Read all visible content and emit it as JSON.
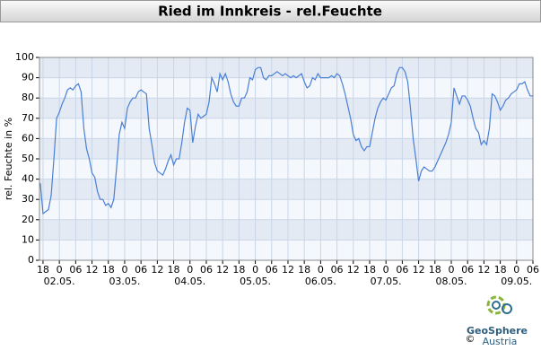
{
  "chart_data": {
    "type": "line",
    "title": "Ried im Innkreis - rel.Feuchte",
    "y_label": "rel. Feuchte in %",
    "credit": {
      "copyright": "©",
      "name": "GeoSphere",
      "country": "Austria"
    },
    "series": [
      {
        "color": "#4a7fd6",
        "x": [
          -1,
          0,
          1,
          2,
          3,
          4,
          5,
          6,
          7,
          8,
          9,
          10,
          11,
          12,
          13,
          14,
          15,
          16,
          17,
          18,
          19,
          20,
          21,
          22,
          23,
          24,
          25,
          26,
          27,
          28,
          29,
          30,
          31,
          32,
          33,
          34,
          35,
          36,
          37,
          38,
          39,
          40,
          41,
          42,
          43,
          44,
          45,
          46,
          47,
          48,
          49,
          50,
          51,
          52,
          53,
          54,
          55,
          56,
          57,
          58,
          59,
          60,
          61,
          62,
          63,
          64,
          65,
          66,
          67,
          68,
          69,
          70,
          71,
          72,
          73,
          74,
          75,
          76,
          77,
          78,
          79,
          80,
          81,
          82,
          83,
          84,
          85,
          86,
          87,
          88,
          89,
          90,
          91,
          92,
          93,
          94,
          95,
          96,
          97,
          98,
          99,
          100,
          101,
          102,
          103,
          104,
          105,
          106,
          107,
          108,
          109,
          110,
          111,
          112,
          113,
          114,
          115,
          116,
          117,
          118,
          119,
          120,
          121,
          122,
          123,
          124,
          125,
          126,
          127,
          128,
          129,
          130,
          131,
          132,
          133,
          134,
          135,
          136,
          137,
          138,
          139,
          140,
          141,
          142,
          143,
          144,
          145,
          146,
          147,
          148,
          149,
          150,
          151,
          152,
          153,
          154,
          155,
          156,
          157,
          158,
          159,
          160,
          161,
          162,
          163,
          164,
          165,
          166,
          167,
          168,
          169,
          170,
          171,
          172,
          173,
          174,
          175,
          176,
          177,
          178,
          179,
          180
        ],
        "values": [
          38,
          23,
          24,
          25,
          32,
          50,
          70,
          73,
          77,
          80,
          84,
          85,
          84,
          86,
          87,
          83,
          65,
          55,
          50,
          43,
          41,
          34,
          30,
          30,
          27,
          28,
          26,
          30,
          45,
          62,
          68,
          65,
          75,
          78,
          80,
          80,
          83,
          84,
          83,
          82,
          65,
          57,
          48,
          44,
          43,
          42,
          45,
          49,
          52,
          47,
          50,
          50,
          58,
          68,
          75,
          74,
          58,
          66,
          72,
          70,
          71,
          72,
          78,
          90,
          87,
          83,
          92,
          89,
          92,
          88,
          82,
          78,
          76,
          76,
          80,
          80,
          83,
          90,
          89,
          94,
          95,
          95,
          90,
          89,
          91,
          91,
          92,
          93,
          92,
          91,
          92,
          91,
          90,
          91,
          90,
          91,
          92,
          88,
          85,
          86,
          90,
          89,
          92,
          90,
          90,
          90,
          90,
          91,
          90,
          92,
          91,
          87,
          82,
          76,
          70,
          62,
          59,
          60,
          56,
          54,
          56,
          56,
          63,
          70,
          75,
          78,
          80,
          79,
          82,
          85,
          86,
          92,
          95,
          95,
          93,
          88,
          75,
          60,
          50,
          39,
          44,
          46,
          45,
          44,
          44,
          46,
          49,
          52,
          55,
          58,
          62,
          68,
          85,
          81,
          77,
          81,
          81,
          79,
          76,
          70,
          65,
          63,
          57,
          59,
          57,
          65,
          82,
          81,
          78,
          74,
          76,
          79,
          80,
          82,
          83,
          84,
          87,
          87,
          88,
          84,
          81,
          81
        ]
      }
    ],
    "xlim": [
      -1.3,
      180
    ],
    "xticks": [
      {
        "value": 0,
        "label": "18"
      },
      {
        "value": 6,
        "label": "0"
      },
      {
        "value": 12,
        "label": "06"
      },
      {
        "value": 18,
        "label": "12"
      },
      {
        "value": 24,
        "label": "18"
      },
      {
        "value": 30,
        "label": "0"
      },
      {
        "value": 36,
        "label": "06"
      },
      {
        "value": 42,
        "label": "12"
      },
      {
        "value": 48,
        "label": "18"
      },
      {
        "value": 54,
        "label": "0"
      },
      {
        "value": 60,
        "label": "06"
      },
      {
        "value": 66,
        "label": "12"
      },
      {
        "value": 72,
        "label": "18"
      },
      {
        "value": 78,
        "label": "0"
      },
      {
        "value": 84,
        "label": "06"
      },
      {
        "value": 90,
        "label": "12"
      },
      {
        "value": 96,
        "label": "18"
      },
      {
        "value": 102,
        "label": "0"
      },
      {
        "value": 108,
        "label": "06"
      },
      {
        "value": 114,
        "label": "12"
      },
      {
        "value": 120,
        "label": "18"
      },
      {
        "value": 126,
        "label": "0"
      },
      {
        "value": 132,
        "label": "06"
      },
      {
        "value": 138,
        "label": "12"
      },
      {
        "value": 144,
        "label": "18"
      },
      {
        "value": 150,
        "label": "0"
      },
      {
        "value": 156,
        "label": "06"
      },
      {
        "value": 162,
        "label": "12"
      },
      {
        "value": 168,
        "label": "18"
      },
      {
        "value": 174,
        "label": "0"
      },
      {
        "value": 180,
        "label": "06"
      }
    ],
    "x_date_labels": [
      {
        "value": 6,
        "label": "02.05."
      },
      {
        "value": 30,
        "label": "03.05."
      },
      {
        "value": 54,
        "label": "04.05."
      },
      {
        "value": 78,
        "label": "05.05."
      },
      {
        "value": 102,
        "label": "06.05."
      },
      {
        "value": 126,
        "label": "07.05."
      },
      {
        "value": 150,
        "label": "08.05."
      },
      {
        "value": 174,
        "label": "09.05."
      }
    ],
    "ylim": [
      0,
      100
    ],
    "yticks": [
      0,
      10,
      20,
      30,
      40,
      50,
      60,
      70,
      80,
      90,
      100
    ],
    "grid": true
  }
}
